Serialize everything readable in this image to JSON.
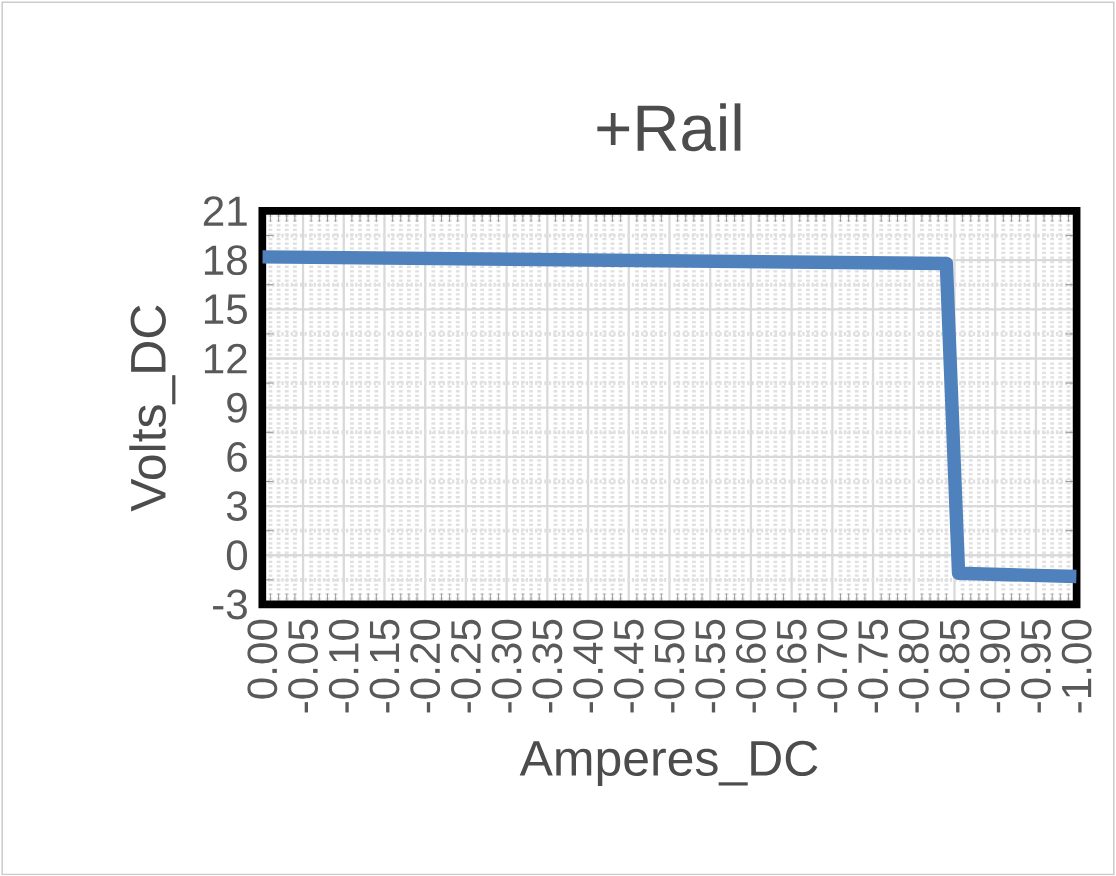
{
  "chart_data": {
    "type": "line",
    "title": "+Rail",
    "xlabel": "Amperes_DC",
    "ylabel": "Volts_DC",
    "x": [
      0,
      -0.84,
      -0.855,
      -1.0
    ],
    "series": [
      {
        "color": "#4f81bd",
        "values": [
          18.2,
          17.8,
          -1.1,
          -1.3
        ]
      }
    ],
    "xlim": [
      0,
      -1
    ],
    "xticks": [
      {
        "value": 0,
        "label": "0.00"
      },
      {
        "value": -0.05,
        "label": "-0.05"
      },
      {
        "value": -0.1,
        "label": "-0.10"
      },
      {
        "value": -0.15,
        "label": "-0.15"
      },
      {
        "value": -0.2,
        "label": "-0.20"
      },
      {
        "value": -0.25,
        "label": "-0.25"
      },
      {
        "value": -0.3,
        "label": "-0.30"
      },
      {
        "value": -0.35,
        "label": "-0.35"
      },
      {
        "value": -0.4,
        "label": "-0.40"
      },
      {
        "value": -0.45,
        "label": "-0.45"
      },
      {
        "value": -0.5,
        "label": "-0.50"
      },
      {
        "value": -0.55,
        "label": "-0.55"
      },
      {
        "value": -0.6,
        "label": "-0.60"
      },
      {
        "value": -0.65,
        "label": "-0.65"
      },
      {
        "value": -0.7,
        "label": "-0.70"
      },
      {
        "value": -0.75,
        "label": "-0.75"
      },
      {
        "value": -0.8,
        "label": "-0.80"
      },
      {
        "value": -0.85,
        "label": "-0.85"
      },
      {
        "value": -0.9,
        "label": "-0.90"
      },
      {
        "value": -0.95,
        "label": "-0.95"
      },
      {
        "value": -1.0,
        "label": "-1.00"
      }
    ],
    "ylim": [
      -3,
      21
    ],
    "yticks": [
      -3,
      0,
      3,
      6,
      9,
      12,
      15,
      18,
      21
    ],
    "grid": true,
    "marker": "none",
    "line_style": "solid"
  }
}
